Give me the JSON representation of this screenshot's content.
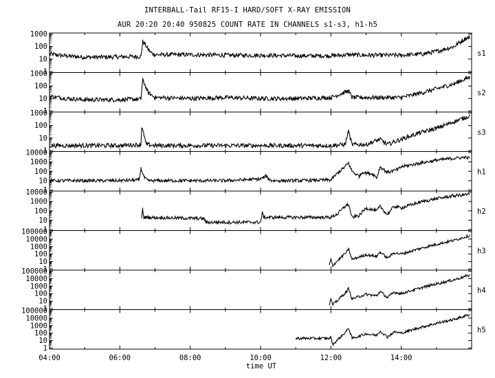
{
  "title_line1": "INTERBALL-Tail RF15-I HARD/SOFT X-RAY EMISSION",
  "title_line2": "AUR 20:20 20:40 950825  COUNT RATE IN CHANNELS s1-s3, h1-h5",
  "xlabel": "time UT",
  "chart_data": {
    "type": "line",
    "title": "INTERBALL-Tail RF15-I HARD/SOFT X-RAY EMISSION",
    "subtitle": "AUR 20:20 20:40 950825  COUNT RATE IN CHANNELS s1-s3, h1-h5",
    "xlabel": "time UT",
    "x_unit": "hours UT",
    "x_tick_labels": [
      "04:00",
      "06:00",
      "08:00",
      "10:00",
      "12:00",
      "14:00"
    ],
    "x_ticks": [
      4,
      6,
      8,
      10,
      12,
      14
    ],
    "xlim": [
      4.0,
      16.0
    ],
    "y_scale": "log",
    "grid": false,
    "series": [
      {
        "name": "s1",
        "ylim": [
          1,
          1000
        ],
        "ytick_labels": [
          "1",
          "10",
          "100",
          "1000"
        ],
        "points": [
          [
            4.0,
            25
          ],
          [
            4.5,
            17
          ],
          [
            5.0,
            14
          ],
          [
            5.5,
            14
          ],
          [
            6.0,
            15
          ],
          [
            6.6,
            16
          ],
          [
            6.65,
            250
          ],
          [
            6.7,
            180
          ],
          [
            6.8,
            60
          ],
          [
            6.9,
            30
          ],
          [
            7.0,
            22
          ],
          [
            8.0,
            22
          ],
          [
            9.0,
            20
          ],
          [
            10.0,
            20
          ],
          [
            11.0,
            18
          ],
          [
            12.0,
            18
          ],
          [
            12.5,
            22
          ],
          [
            13.0,
            20
          ],
          [
            14.0,
            20
          ],
          [
            14.6,
            25
          ],
          [
            15.0,
            40
          ],
          [
            15.5,
            100
          ],
          [
            15.8,
            400
          ],
          [
            15.95,
            550
          ]
        ]
      },
      {
        "name": "s2",
        "ylim": [
          1,
          1000
        ],
        "ytick_labels": [
          "1",
          "10",
          "100",
          "1000"
        ],
        "points": [
          [
            4.0,
            15
          ],
          [
            4.5,
            10
          ],
          [
            5.0,
            8
          ],
          [
            5.5,
            8
          ],
          [
            6.0,
            8
          ],
          [
            6.6,
            9
          ],
          [
            6.65,
            300
          ],
          [
            6.7,
            150
          ],
          [
            6.8,
            30
          ],
          [
            7.0,
            12
          ],
          [
            8.0,
            10
          ],
          [
            9.0,
            12
          ],
          [
            10.0,
            10
          ],
          [
            11.0,
            10
          ],
          [
            12.0,
            12
          ],
          [
            12.5,
            40
          ],
          [
            12.6,
            12
          ],
          [
            13.0,
            12
          ],
          [
            14.0,
            12
          ],
          [
            14.5,
            25
          ],
          [
            15.0,
            60
          ],
          [
            15.5,
            150
          ],
          [
            15.8,
            350
          ],
          [
            15.95,
            500
          ]
        ]
      },
      {
        "name": "s3",
        "ylim": [
          1,
          1000
        ],
        "ytick_labels": [
          "1",
          "10",
          "100",
          "1000"
        ],
        "points": [
          [
            4.0,
            2.5
          ],
          [
            5.0,
            2.5
          ],
          [
            6.0,
            2.5
          ],
          [
            6.6,
            3
          ],
          [
            6.62,
            70
          ],
          [
            6.68,
            20
          ],
          [
            6.75,
            3
          ],
          [
            7.0,
            2.5
          ],
          [
            8.0,
            2.5
          ],
          [
            9.0,
            2.5
          ],
          [
            10.0,
            2.5
          ],
          [
            11.0,
            2.5
          ],
          [
            12.0,
            2.5
          ],
          [
            12.4,
            3
          ],
          [
            12.5,
            35
          ],
          [
            12.6,
            3
          ],
          [
            13.0,
            3
          ],
          [
            13.4,
            8
          ],
          [
            13.6,
            3
          ],
          [
            14.0,
            8
          ],
          [
            14.5,
            25
          ],
          [
            15.0,
            60
          ],
          [
            15.5,
            200
          ],
          [
            15.95,
            600
          ]
        ]
      },
      {
        "name": "h1",
        "ylim": [
          1,
          10000
        ],
        "ytick_labels": [
          "1",
          "10",
          "100",
          "1000",
          "10000"
        ],
        "points": [
          [
            4.0,
            10
          ],
          [
            5.0,
            10
          ],
          [
            6.0,
            10
          ],
          [
            6.55,
            12
          ],
          [
            6.6,
            200
          ],
          [
            6.7,
            20
          ],
          [
            6.8,
            10
          ],
          [
            8.0,
            10
          ],
          [
            9.0,
            10
          ],
          [
            10.0,
            15
          ],
          [
            10.15,
            30
          ],
          [
            10.3,
            10
          ],
          [
            11.0,
            10
          ],
          [
            12.0,
            12
          ],
          [
            12.2,
            70
          ],
          [
            12.4,
            300
          ],
          [
            12.5,
            800
          ],
          [
            12.6,
            100
          ],
          [
            12.8,
            30
          ],
          [
            12.9,
            80
          ],
          [
            13.2,
            50
          ],
          [
            13.3,
            20
          ],
          [
            13.4,
            300
          ],
          [
            13.6,
            80
          ],
          [
            13.9,
            150
          ],
          [
            14.0,
            300
          ],
          [
            14.5,
            700
          ],
          [
            15.0,
            1500
          ],
          [
            15.5,
            2500
          ],
          [
            15.8,
            3000
          ],
          [
            15.95,
            2500
          ]
        ]
      },
      {
        "name": "h2",
        "ylim": [
          1,
          10000
        ],
        "ytick_labels": [
          "1",
          "10",
          "100",
          "1000",
          "10000"
        ],
        "points": [
          [
            6.62,
            20
          ],
          [
            6.65,
            150
          ],
          [
            6.68,
            20
          ],
          [
            8.4,
            15
          ],
          [
            8.45,
            6
          ],
          [
            10.0,
            6
          ],
          [
            10.05,
            60
          ],
          [
            10.1,
            20
          ],
          [
            10.2,
            20
          ],
          [
            11.0,
            20
          ],
          [
            12.0,
            20
          ],
          [
            12.2,
            50
          ],
          [
            12.4,
            300
          ],
          [
            12.5,
            500
          ],
          [
            12.6,
            20
          ],
          [
            12.8,
            30
          ],
          [
            13.0,
            200
          ],
          [
            13.3,
            100
          ],
          [
            13.4,
            300
          ],
          [
            13.6,
            40
          ],
          [
            13.8,
            300
          ],
          [
            14.0,
            200
          ],
          [
            14.5,
            800
          ],
          [
            15.0,
            2000
          ],
          [
            15.5,
            4000
          ],
          [
            15.95,
            6000
          ]
        ]
      },
      {
        "name": "h3",
        "ylim": [
          1,
          100000
        ],
        "ytick_labels": [
          "1",
          "10",
          "100",
          "1000",
          "10000",
          "100000"
        ],
        "points": [
          [
            11.95,
            3
          ],
          [
            12.0,
            20
          ],
          [
            12.05,
            3
          ],
          [
            12.3,
            40
          ],
          [
            12.45,
            200
          ],
          [
            12.5,
            500
          ],
          [
            12.6,
            20
          ],
          [
            12.8,
            40
          ],
          [
            13.0,
            80
          ],
          [
            13.3,
            50
          ],
          [
            13.4,
            200
          ],
          [
            13.6,
            30
          ],
          [
            13.8,
            150
          ],
          [
            14.0,
            100
          ],
          [
            14.5,
            500
          ],
          [
            15.0,
            2000
          ],
          [
            15.5,
            7000
          ],
          [
            15.95,
            30000
          ]
        ]
      },
      {
        "name": "h4",
        "ylim": [
          1,
          100000
        ],
        "ytick_labels": [
          "1",
          "10",
          "100",
          "1000",
          "10000",
          "100000"
        ],
        "points": [
          [
            11.95,
            3
          ],
          [
            12.0,
            20
          ],
          [
            12.05,
            3
          ],
          [
            12.3,
            40
          ],
          [
            12.45,
            200
          ],
          [
            12.5,
            500
          ],
          [
            12.6,
            20
          ],
          [
            12.8,
            40
          ],
          [
            13.0,
            80
          ],
          [
            13.3,
            50
          ],
          [
            13.4,
            200
          ],
          [
            13.6,
            30
          ],
          [
            13.8,
            150
          ],
          [
            14.0,
            100
          ],
          [
            14.5,
            500
          ],
          [
            15.0,
            2000
          ],
          [
            15.5,
            7000
          ],
          [
            15.95,
            30000
          ]
        ]
      },
      {
        "name": "h5",
        "ylim": [
          1,
          100000
        ],
        "ytick_labels": [
          "1",
          "10",
          "100",
          "1000",
          "10000",
          "100000"
        ],
        "points": [
          [
            11.0,
            20
          ],
          [
            11.95,
            20
          ],
          [
            12.0,
            30
          ],
          [
            12.05,
            3
          ],
          [
            12.3,
            40
          ],
          [
            12.45,
            200
          ],
          [
            12.5,
            500
          ],
          [
            12.6,
            20
          ],
          [
            12.8,
            40
          ],
          [
            13.0,
            80
          ],
          [
            13.3,
            50
          ],
          [
            13.4,
            200
          ],
          [
            13.6,
            30
          ],
          [
            13.8,
            150
          ],
          [
            14.0,
            100
          ],
          [
            14.5,
            500
          ],
          [
            15.0,
            2000
          ],
          [
            15.5,
            7000
          ],
          [
            15.95,
            30000
          ]
        ]
      }
    ]
  }
}
